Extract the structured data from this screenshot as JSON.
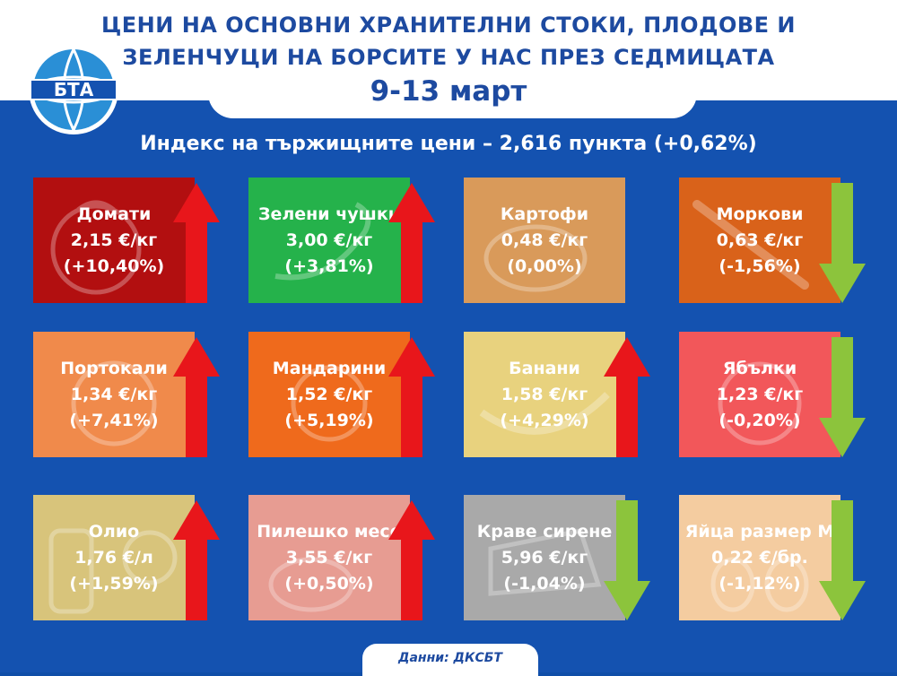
{
  "header": {
    "title_line1": "ЦЕНИ НА ОСНОВНИ ХРАНИТЕЛНИ СТОКИ, ПЛОДОВЕ И",
    "title_line2": "ЗЕЛЕНЧУЦИ НА БОРСИТЕ У НАС ПРЕЗ СЕДМИЦАТА",
    "date": "9-13 март",
    "logo_text": "БТА"
  },
  "index_text": "Индекс на тържищните цени – 2,616 пункта (+0,62%)",
  "colors": {
    "up_arrow": "#e8161b",
    "down_arrow": "#8cc43c",
    "background": "#1452b0",
    "title": "#1d4aa0"
  },
  "items": [
    {
      "name": "Домати",
      "price": "2,15 €/кг",
      "change": "(+10,40%)",
      "trend": "up",
      "color": "#b20f10",
      "icon": "tomato-icon"
    },
    {
      "name": "Зелени чушки",
      "price": "3,00 €/кг",
      "change": "(+3,81%)",
      "trend": "up",
      "color": "#25b24b",
      "icon": "pepper-icon"
    },
    {
      "name": "Картофи",
      "price": "0,48 €/кг",
      "change": "(0,00%)",
      "trend": "flat",
      "color": "#d99a5a",
      "icon": "potato-icon"
    },
    {
      "name": "Моркови",
      "price": "0,63 €/кг",
      "change": "(-1,56%)",
      "trend": "down",
      "color": "#d9621a",
      "icon": "carrot-icon"
    },
    {
      "name": "Портокали",
      "price": "1,34 €/кг",
      "change": "(+7,41%)",
      "trend": "up",
      "color": "#f08a4b",
      "icon": "orange-icon"
    },
    {
      "name": "Мандарини",
      "price": "1,52 €/кг",
      "change": "(+5,19%)",
      "trend": "up",
      "color": "#ef6a1c",
      "icon": "mandarin-icon"
    },
    {
      "name": "Банани",
      "price": "1,58 €/кг",
      "change": "(+4,29%)",
      "trend": "up",
      "color": "#e8d27e",
      "icon": "banana-icon"
    },
    {
      "name": "Ябълки",
      "price": "1,23 €/кг",
      "change": "(-0,20%)",
      "trend": "down",
      "color": "#f2575a",
      "icon": "apple-icon"
    },
    {
      "name": "Олио",
      "price": "1,76 €/л",
      "change": "(+1,59%)",
      "trend": "up",
      "color": "#d8c47b",
      "icon": "oil-bottle-icon"
    },
    {
      "name": "Пилешко месо",
      "price": "3,55 €/кг",
      "change": "(+0,50%)",
      "trend": "up",
      "color": "#e79c92",
      "icon": "chicken-icon"
    },
    {
      "name": "Краве сирене",
      "price": "5,96 €/кг",
      "change": "(-1,04%)",
      "trend": "down",
      "color": "#a9a9a9",
      "icon": "cheese-icon"
    },
    {
      "name": "Яйца размер М",
      "price": "0,22 €/бр.",
      "change": "(-1,12%)",
      "trend": "down",
      "color": "#f4cca0",
      "icon": "eggs-icon"
    }
  ],
  "footer": "Данни: ДКСБТ"
}
